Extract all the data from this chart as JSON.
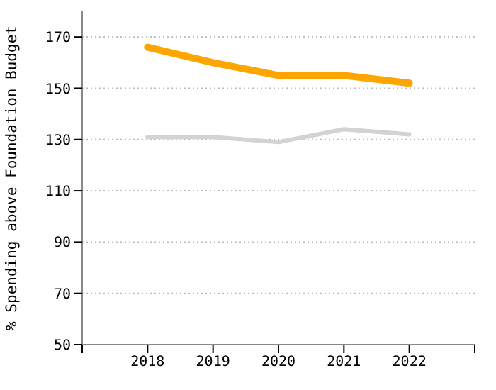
{
  "chart_data": {
    "type": "line",
    "ylabel": "% Spending above Foundation Budget",
    "x": [
      2018,
      2019,
      2020,
      2021,
      2022
    ],
    "xlim": [
      2017,
      2023
    ],
    "xticks": [
      {
        "value": 2017,
        "label": null
      },
      2018,
      2019,
      2020,
      2021,
      2022,
      {
        "value": 2023,
        "label": null
      }
    ],
    "ylim": [
      50,
      180
    ],
    "yticks": [
      50,
      70,
      90,
      110,
      130,
      150,
      170
    ],
    "grid": "y",
    "legend": false,
    "marker": "none",
    "line_style": "solid",
    "series": [
      {
        "color": "#ffa500",
        "values": [
          166,
          160,
          155,
          155,
          152
        ]
      },
      {
        "color": "#d3d3d3",
        "values": [
          131,
          131,
          129,
          134,
          132
        ]
      }
    ]
  }
}
